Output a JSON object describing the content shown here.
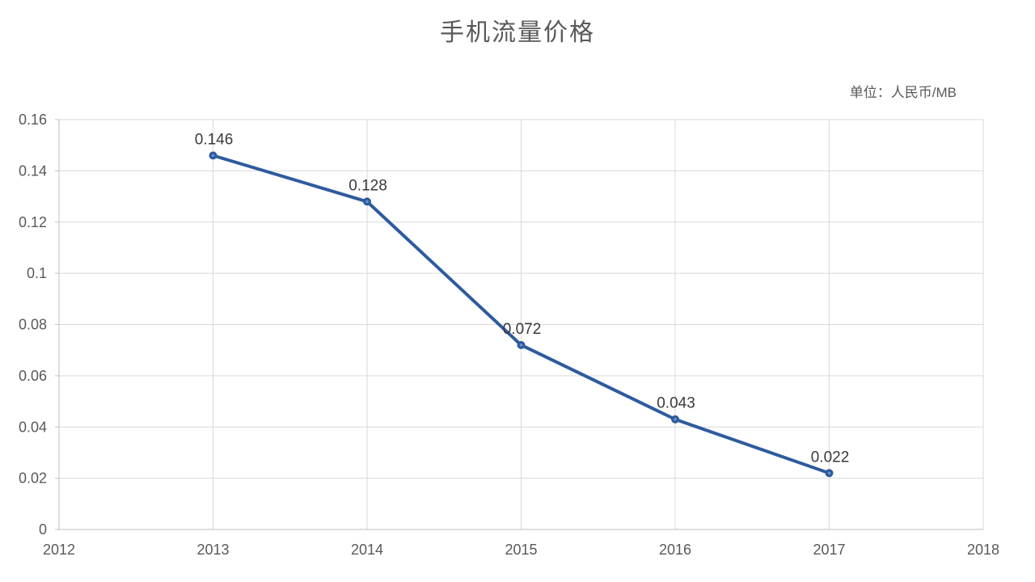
{
  "chart_data": {
    "type": "line",
    "title": "手机流量价格",
    "unit_label": "单位：人民币/MB",
    "x": [
      2013,
      2014,
      2015,
      2016,
      2017
    ],
    "values": [
      0.146,
      0.128,
      0.072,
      0.043,
      0.022
    ],
    "data_labels": [
      "0.146",
      "0.128",
      "0.072",
      "0.043",
      "0.022"
    ],
    "xlim": [
      2012,
      2018
    ],
    "ylim": [
      0,
      0.16
    ],
    "x_ticks": [
      "2012",
      "2013",
      "2014",
      "2015",
      "2016",
      "2017",
      "2018"
    ],
    "y_ticks": [
      "0",
      "0.02",
      "0.04",
      "0.06",
      "0.08",
      "0.1",
      "0.12",
      "0.14",
      "0.16"
    ],
    "grid": true,
    "legend": "none",
    "colors": {
      "line": "#2e5b9e",
      "marker": "#2e5b9e",
      "marker_center": "#6f94cc",
      "grid": "#d9d9d9",
      "axis": "#bfbfbf",
      "tick_label": "#595959",
      "data_label": "#3a3a3a",
      "title": "#595959",
      "background": "#ffffff"
    }
  }
}
